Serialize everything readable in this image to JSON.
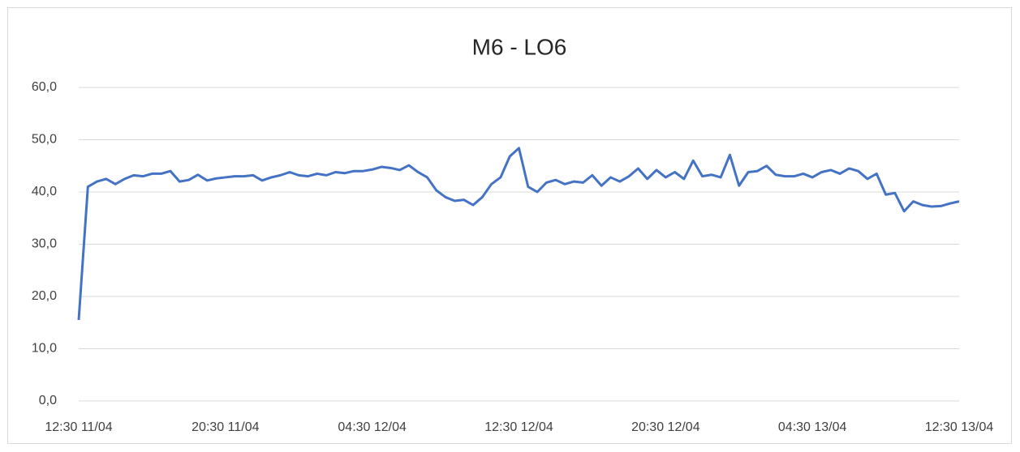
{
  "chart_data": {
    "type": "line",
    "title": "M6 - LO6",
    "categories": [
      "12:30 11/04",
      null,
      null,
      null,
      null,
      null,
      null,
      null,
      null,
      null,
      null,
      null,
      null,
      null,
      null,
      null,
      "20:30 11/04",
      null,
      null,
      null,
      null,
      null,
      null,
      null,
      null,
      null,
      null,
      null,
      null,
      null,
      null,
      null,
      "04:30 12/04",
      null,
      null,
      null,
      null,
      null,
      null,
      null,
      null,
      null,
      null,
      null,
      null,
      null,
      null,
      null,
      "12:30 12/04",
      null,
      null,
      null,
      null,
      null,
      null,
      null,
      null,
      null,
      null,
      null,
      null,
      null,
      null,
      null,
      "20:30 12/04",
      null,
      null,
      null,
      null,
      null,
      null,
      null,
      null,
      null,
      null,
      null,
      null,
      null,
      null,
      null,
      "04:30 13/04",
      null,
      null,
      null,
      null,
      null,
      null,
      null,
      null,
      null,
      null,
      null,
      null,
      null,
      null,
      null,
      "12:30 13/04"
    ],
    "series": [
      {
        "name": "M6 - LO6",
        "color": "#4472c4",
        "values": [
          15.5,
          41.0,
          42.0,
          42.5,
          41.5,
          42.5,
          43.2,
          43.0,
          43.5,
          43.5,
          44.0,
          42.0,
          42.3,
          43.3,
          42.2,
          42.6,
          42.8,
          43.0,
          43.0,
          43.2,
          42.2,
          42.8,
          43.2,
          43.8,
          43.2,
          43.0,
          43.5,
          43.2,
          43.8,
          43.6,
          44.0,
          44.0,
          44.3,
          44.8,
          44.6,
          44.2,
          45.1,
          43.8,
          42.8,
          40.3,
          39.0,
          38.3,
          38.5,
          37.5,
          39.0,
          41.5,
          42.8,
          46.8,
          48.4,
          41.0,
          40.0,
          41.8,
          42.3,
          41.5,
          42.0,
          41.8,
          43.2,
          41.2,
          42.8,
          42.0,
          43.0,
          44.5,
          42.5,
          44.2,
          42.8,
          43.8,
          42.5,
          46.0,
          43.0,
          43.3,
          42.8,
          47.1,
          41.2,
          43.8,
          44.0,
          45.0,
          43.3,
          43.0,
          43.0,
          43.5,
          42.8,
          43.8,
          44.2,
          43.5,
          44.5,
          44.0,
          42.5,
          43.5,
          39.5,
          39.8,
          36.3,
          38.2,
          37.5,
          37.2,
          37.3,
          37.8,
          38.2
        ]
      }
    ],
    "ylim": [
      0,
      60
    ],
    "yticks": [
      {
        "value": 0,
        "label": "0,0"
      },
      {
        "value": 10,
        "label": "10,0"
      },
      {
        "value": 20,
        "label": "20,0"
      },
      {
        "value": 30,
        "label": "30,0"
      },
      {
        "value": 40,
        "label": "40,0"
      },
      {
        "value": 50,
        "label": "50,0"
      },
      {
        "value": 60,
        "label": "60,0"
      }
    ],
    "grid": true
  }
}
